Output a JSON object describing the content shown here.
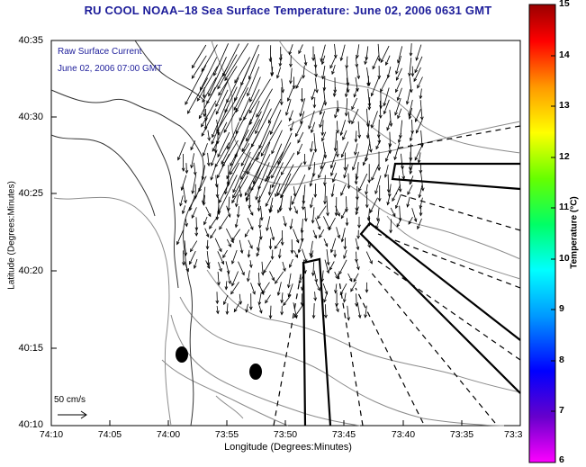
{
  "title": "RU COOL  NOAA–18  Sea Surface Temperature:  June 02, 2006 0631 GMT",
  "legend": {
    "line1": "Raw Surface Current",
    "line2": "June 02, 2006 07:00 GMT"
  },
  "axes": {
    "xlabel": "Longitude (Degrees:Minutes)",
    "ylabel": "Latitude (Degrees:Minutes)",
    "xticks": [
      "74:10",
      "74:05",
      "74:00",
      "73:55",
      "73:50",
      "73:45",
      "73:40",
      "73:35",
      "73:3"
    ],
    "yticks": [
      "40:35",
      "40:30",
      "40:25",
      "40:20",
      "40:15",
      "40:10"
    ]
  },
  "scale_label": "50 cm/s",
  "colorbar": {
    "title": "Temperature (°C)",
    "ticks": [
      "15",
      "14",
      "13",
      "12",
      "11",
      "10",
      "9",
      "8",
      "7",
      "6"
    ],
    "min": 6,
    "max": 15,
    "colors": [
      "#ff00ff",
      "#6600cc",
      "#0000ff",
      "#0099ff",
      "#00ffff",
      "#00ff66",
      "#66ff00",
      "#ffff00",
      "#ff9900",
      "#ff0000",
      "#990000"
    ]
  },
  "map_colors": {
    "ink": "#000000",
    "contour": "#8c8c8c",
    "title": "#1d1d9a"
  }
}
